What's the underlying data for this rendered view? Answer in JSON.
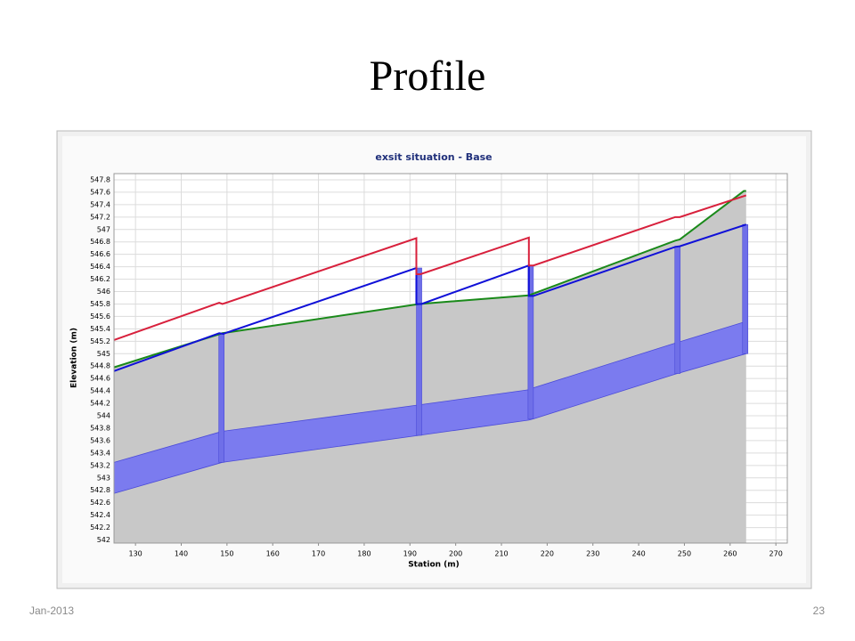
{
  "slide": {
    "title": "Profile",
    "date": "Jan-2013",
    "page": "23"
  },
  "chart_data": {
    "type": "line",
    "title": "exsit situation  - Base",
    "x_label": "Station (m)",
    "y_label": "Elevation (m)",
    "xlim": [
      125.3,
      272.5
    ],
    "ylim": [
      541.95,
      547.9
    ],
    "xticks": [
      130,
      140,
      150,
      160,
      170,
      180,
      190,
      200,
      210,
      220,
      230,
      240,
      250,
      260,
      270
    ],
    "yticks": [
      542,
      542.2,
      542.4,
      542.6,
      542.8,
      543,
      543.2,
      543.4,
      543.6,
      543.8,
      544,
      544.2,
      544.4,
      544.6,
      544.8,
      545,
      545.2,
      545.4,
      545.6,
      545.8,
      546,
      546.2,
      546.4,
      546.6,
      546.8,
      547,
      547.2,
      547.4,
      547.6,
      547.8
    ],
    "grid": true,
    "series": [
      {
        "type": "area",
        "color": "#c8c8c8",
        "x": [
          125.3,
          149,
          192,
          216,
          248,
          249,
          263,
          263.5
        ],
        "values": [
          544.78,
          545.33,
          545.8,
          545.94,
          546.82,
          546.84,
          547.62,
          547.62
        ]
      },
      {
        "type": "band",
        "color": "#7b7bef",
        "x": [
          125.3,
          149,
          191.5,
          216,
          217,
          248,
          263.5
        ],
        "low": [
          542.75,
          543.25,
          543.68,
          543.93,
          543.95,
          544.67,
          545.0
        ],
        "high": [
          543.25,
          543.75,
          544.17,
          544.42,
          544.45,
          545.17,
          545.52
        ]
      },
      {
        "type": "line",
        "color": "#1a8a1a",
        "x": [
          125.3,
          149,
          192,
          216,
          248,
          249,
          263,
          263.5
        ],
        "values": [
          544.78,
          545.33,
          545.8,
          545.94,
          546.82,
          546.84,
          547.62,
          547.62
        ]
      },
      {
        "type": "line",
        "color": "#1010d8",
        "x": [
          125.3,
          148.3,
          149.2,
          191.4,
          191.4,
          192.5,
          216,
          216,
          217,
          248,
          249,
          263.5
        ],
        "values": [
          544.72,
          545.33,
          545.32,
          546.38,
          545.8,
          545.8,
          546.42,
          545.93,
          545.93,
          546.72,
          546.73,
          547.08
        ]
      },
      {
        "type": "line",
        "color": "#d8203c",
        "x": [
          125.3,
          148.3,
          149,
          191.4,
          191.4,
          192.3,
          216,
          216,
          217,
          248,
          249,
          263.5
        ],
        "values": [
          545.22,
          545.82,
          545.8,
          546.86,
          546.28,
          546.28,
          546.87,
          546.42,
          546.42,
          547.2,
          547.2,
          547.55
        ]
      }
    ],
    "manholes": {
      "color": "#6f6fe8",
      "x": [
        148.8,
        192,
        216.4,
        248.5,
        263.3
      ]
    }
  }
}
